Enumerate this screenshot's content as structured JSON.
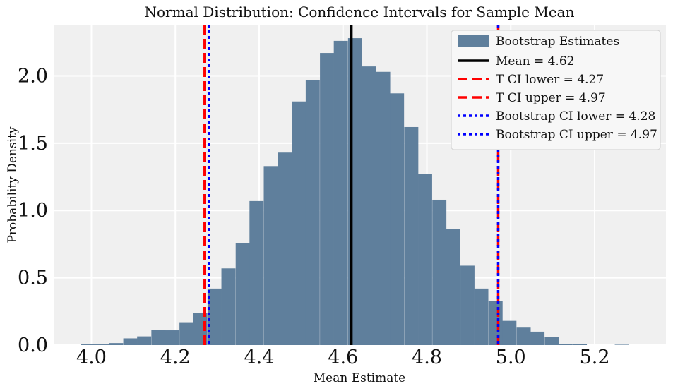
{
  "chart_data": {
    "type": "bar",
    "title": "Normal Distribution: Confidence Intervals for Sample Mean",
    "xlabel": "Mean Estimate",
    "ylabel": "Probability Density",
    "xlim": [
      3.91,
      5.37
    ],
    "ylim": [
      0,
      2.38
    ],
    "x_ticks": [
      4.0,
      4.2,
      4.4,
      4.6,
      4.8,
      5.0,
      5.2
    ],
    "x_tick_labels": [
      "4.0",
      "4.2",
      "4.4",
      "4.6",
      "4.8",
      "5.0",
      "5.2"
    ],
    "y_ticks": [
      0.0,
      0.5,
      1.0,
      1.5,
      2.0
    ],
    "y_tick_labels": [
      "0.0",
      "0.5",
      "1.0",
      "1.5",
      "2.0"
    ],
    "grid": true,
    "legend_position": "top-right",
    "histogram": {
      "name": "Bootstrap Estimates",
      "bin_width": 0.0335,
      "bin_starts": [
        3.975,
        4.009,
        4.042,
        4.076,
        4.109,
        4.143,
        4.176,
        4.21,
        4.243,
        4.277,
        4.31,
        4.344,
        4.377,
        4.411,
        4.444,
        4.478,
        4.511,
        4.545,
        4.578,
        4.612,
        4.645,
        4.679,
        4.712,
        4.746,
        4.779,
        4.813,
        4.846,
        4.88,
        4.913,
        4.947,
        4.98,
        5.014,
        5.047,
        5.081,
        5.114,
        5.148,
        5.181,
        5.215,
        5.248,
        5.282
      ],
      "values": [
        0.005,
        0.005,
        0.015,
        0.05,
        0.065,
        0.115,
        0.11,
        0.17,
        0.24,
        0.42,
        0.57,
        0.76,
        1.07,
        1.33,
        1.43,
        1.81,
        1.97,
        2.17,
        2.26,
        2.28,
        2.07,
        2.03,
        1.87,
        1.62,
        1.27,
        1.08,
        0.86,
        0.59,
        0.42,
        0.33,
        0.18,
        0.13,
        0.1,
        0.06,
        0.01,
        0.01,
        0.0,
        0.0,
        0.003,
        0.0
      ],
      "color": "#5f7f9c"
    },
    "vertical_lines": [
      {
        "name": "Mean = 4.62",
        "x": 4.62,
        "color": "#000000",
        "style": "solid"
      },
      {
        "name": "T CI lower = 4.27",
        "x": 4.27,
        "color": "#ff0000",
        "style": "dashed"
      },
      {
        "name": "T CI upper = 4.97",
        "x": 4.97,
        "color": "#ff0000",
        "style": "dashed"
      },
      {
        "name": "Bootstrap CI lower = 4.28",
        "x": 4.28,
        "color": "#0000ff",
        "style": "dotted"
      },
      {
        "name": "Bootstrap CI upper = 4.97",
        "x": 4.97,
        "color": "#0000ff",
        "style": "dotted"
      }
    ],
    "colors": {
      "background": "#f0f0f0",
      "grid": "#ffffff"
    }
  }
}
